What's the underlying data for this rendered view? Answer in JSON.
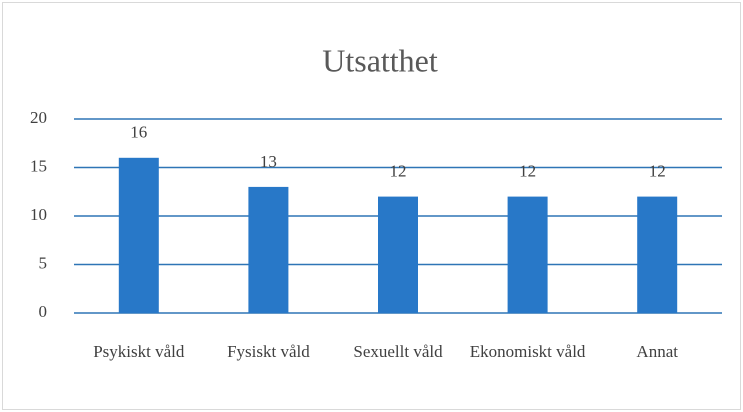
{
  "chart_data": {
    "type": "bar",
    "title": "Utsatthet",
    "categories": [
      "Psykiskt våld",
      "Fysiskt våld",
      "Sexuellt våld",
      "Ekonomiskt våld",
      "Annat"
    ],
    "values": [
      16,
      13,
      12,
      12,
      12
    ],
    "color": "#2878c8",
    "ylim": [
      0,
      20
    ],
    "yticks": [
      0,
      5,
      10,
      15,
      20
    ],
    "grid": true,
    "grid_color": "#2e75b6",
    "data_labels": true
  }
}
